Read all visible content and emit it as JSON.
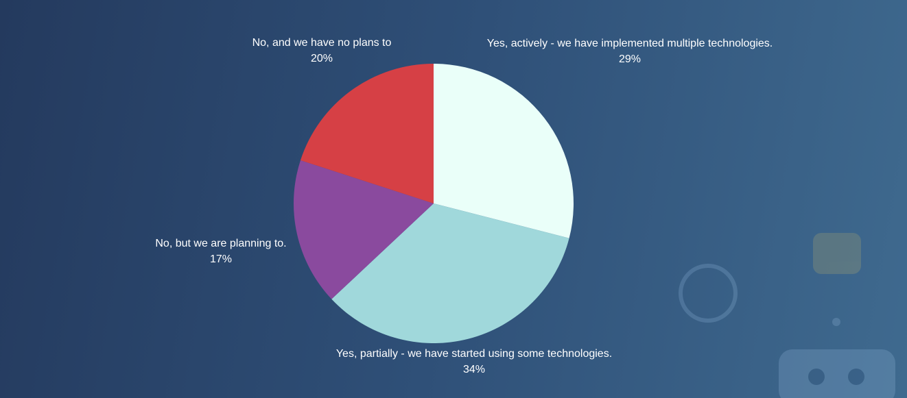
{
  "chart_data": {
    "type": "pie",
    "categories": [
      "Yes, actively - we have implemented multiple technologies.",
      "Yes, partially - we have started using some technologies.",
      "No, but we are planning to.",
      "No, and we have no plans to"
    ],
    "values": [
      29,
      34,
      17,
      20
    ],
    "value_labels": [
      "29%",
      "34%",
      "17%",
      "20%"
    ],
    "colors": [
      "#eafff9",
      "#a0d8db",
      "#8a4a9e",
      "#d64045"
    ]
  }
}
